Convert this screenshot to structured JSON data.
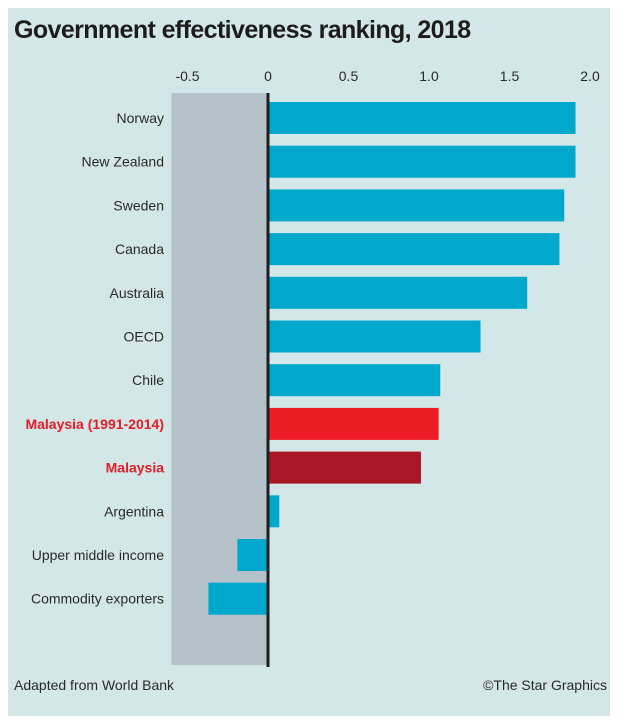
{
  "chart_data": {
    "type": "bar",
    "orientation": "horizontal",
    "title": "Government effectiveness ranking, 2018",
    "xlabel": "",
    "ylabel": "",
    "xlim": [
      -0.6,
      2.0
    ],
    "xticks": [
      -0.5,
      0,
      0.5,
      1.0,
      1.5,
      2.0
    ],
    "xtick_labels": [
      "-0.5",
      "0",
      "0.5",
      "1.0",
      "1.5",
      "2.0"
    ],
    "negative_region_shaded": true,
    "grid": false,
    "legend": "none",
    "categories": [
      "Norway",
      "New Zealand",
      "Sweden",
      "Canada",
      "Australia",
      "OECD",
      "Chile",
      "Malaysia (1991-2014)",
      "Malaysia",
      "Argentina",
      "Upper middle income",
      "Commodity exporters"
    ],
    "values": [
      1.91,
      1.91,
      1.84,
      1.81,
      1.61,
      1.32,
      1.07,
      1.06,
      0.95,
      0.07,
      -0.19,
      -0.37
    ],
    "highlighted": [
      false,
      false,
      false,
      false,
      false,
      false,
      false,
      true,
      true,
      false,
      false,
      false
    ],
    "bar_colors": [
      "#00a8cc",
      "#00a8cc",
      "#00a8cc",
      "#00a8cc",
      "#00a8cc",
      "#00a8cc",
      "#00a8cc",
      "#ee1c25",
      "#a81627",
      "#00a8cc",
      "#00a8cc",
      "#00a8cc"
    ]
  },
  "colors": {
    "background": "#d4e7e8",
    "negative_region": "#b5c2c9",
    "zero_line": "#1e1e1e",
    "bar_default": "#00a8cc",
    "highlight_label": "#e31b23"
  },
  "footer": {
    "source": "Adapted from World Bank",
    "credit": "©The Star Graphics"
  }
}
